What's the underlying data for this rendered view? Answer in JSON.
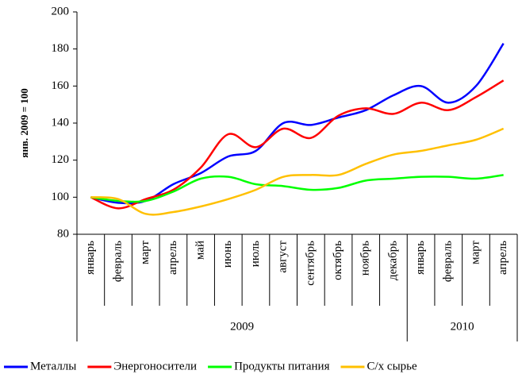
{
  "chart_data": {
    "type": "line",
    "ylabel": "янв. 2009 = 100",
    "categories": [
      "январь",
      "февраль",
      "март",
      "апрель",
      "май",
      "июнь",
      "июль",
      "август",
      "сентябрь",
      "октябрь",
      "ноябрь",
      "декабрь",
      "январь",
      "февраль",
      "март",
      "апрель"
    ],
    "category_groups": [
      {
        "label": "2009",
        "size": 12
      },
      {
        "label": "2010",
        "size": 4
      }
    ],
    "series": [
      {
        "name": "Металлы",
        "color": "#0000ff",
        "values": [
          100,
          97,
          98,
          107,
          113,
          122,
          125,
          140,
          139,
          143,
          147,
          155,
          160,
          151,
          160,
          183
        ]
      },
      {
        "name": "Энергоносители",
        "color": "#ff0000",
        "values": [
          100,
          94,
          99,
          104,
          116,
          134,
          127,
          137,
          132,
          144,
          148,
          145,
          151,
          147,
          154,
          163
        ]
      },
      {
        "name": "Продукты питания",
        "color": "#00ff00",
        "values": [
          100,
          98,
          98,
          103,
          110,
          111,
          107,
          106,
          104,
          105,
          109,
          110,
          111,
          111,
          110,
          112
        ]
      },
      {
        "name": "С/х сырье",
        "color": "#ffc000",
        "values": [
          100,
          99,
          91,
          92,
          95,
          99,
          104,
          111,
          112,
          112,
          118,
          123,
          125,
          128,
          131,
          137
        ]
      }
    ],
    "ylim": [
      80,
      200
    ],
    "yticks": [
      80,
      100,
      120,
      140,
      160,
      180,
      200
    ],
    "grid": false,
    "legend": "bottom"
  }
}
